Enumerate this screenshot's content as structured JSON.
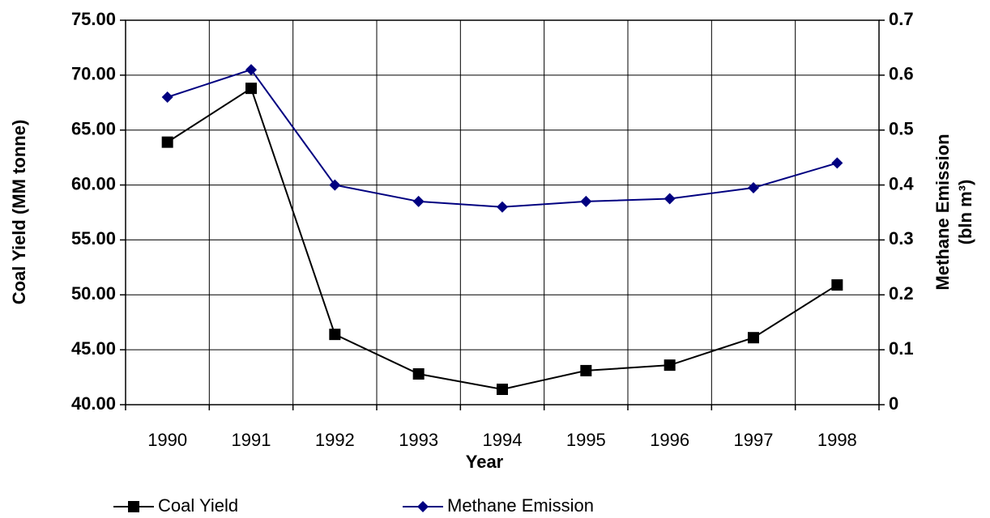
{
  "chart_data": {
    "type": "line",
    "xlabel": "Year",
    "ylabel": "Coal Yield (MM tonne)",
    "y2label": [
      "Methane Emission",
      "(bln m³)"
    ],
    "categories": [
      "1990",
      "1991",
      "1992",
      "1993",
      "1994",
      "1995",
      "1996",
      "1997",
      "1998"
    ],
    "series": [
      {
        "name": "Coal Yield",
        "color": "#000000",
        "marker": "square",
        "values": [
          63.9,
          68.8,
          46.4,
          42.8,
          41.4,
          43.1,
          43.6,
          46.1,
          50.9
        ]
      },
      {
        "name": "Methane Emission",
        "color": "#000080",
        "marker": "diamond",
        "axis": "y2",
        "values": [
          0.56,
          0.61,
          0.4,
          0.37,
          0.36,
          0.37,
          0.375,
          0.395,
          0.44
        ]
      }
    ],
    "ylim": [
      40,
      75
    ],
    "yticks": [
      {
        "value": 40,
        "label": "40.00"
      },
      {
        "value": 45,
        "label": "45.00"
      },
      {
        "value": 50,
        "label": "50.00"
      },
      {
        "value": 55,
        "label": "55.00"
      },
      {
        "value": 60,
        "label": "60.00"
      },
      {
        "value": 65,
        "label": "65.00"
      },
      {
        "value": 70,
        "label": "70.00"
      },
      {
        "value": 75,
        "label": "75.00"
      }
    ],
    "y2lim": [
      0,
      0.7
    ],
    "y2ticks": [
      0,
      0.1,
      0.2,
      0.3,
      0.4,
      0.5,
      0.6,
      0.7
    ],
    "y2color": "#000080",
    "grid": true,
    "legend": "bottom"
  }
}
